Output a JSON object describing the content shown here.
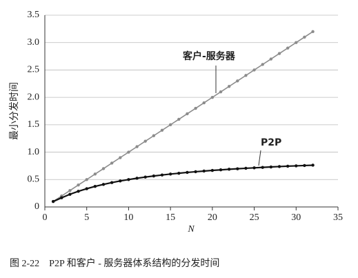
{
  "chart_data": {
    "type": "line",
    "ylabel": "最小分发时间",
    "xlabel": "N",
    "caption": "图 2-22　P2P 和客户 - 服务器体系结构的分发时间",
    "annotations": [
      "客户-服务器",
      "P2P"
    ],
    "x": [
      1,
      2,
      3,
      4,
      5,
      6,
      7,
      8,
      9,
      10,
      11,
      12,
      13,
      14,
      15,
      16,
      17,
      18,
      19,
      20,
      21,
      22,
      23,
      24,
      25,
      26,
      27,
      28,
      29,
      30,
      31,
      32
    ],
    "series": [
      {
        "name": "客户-服务器",
        "color": "#8c8c8c",
        "values": [
          0.1,
          0.2,
          0.3,
          0.4,
          0.5,
          0.6,
          0.7,
          0.8,
          0.9,
          1.0,
          1.1,
          1.2,
          1.3,
          1.4,
          1.5,
          1.6,
          1.7,
          1.8,
          1.9,
          2.0,
          2.1,
          2.2,
          2.3,
          2.4,
          2.5,
          2.6,
          2.7,
          2.8,
          2.9,
          3.0,
          3.1,
          3.2
        ]
      },
      {
        "name": "P2P",
        "color": "#111111",
        "values": [
          0.1,
          0.167,
          0.231,
          0.286,
          0.333,
          0.375,
          0.412,
          0.444,
          0.474,
          0.5,
          0.524,
          0.545,
          0.565,
          0.583,
          0.6,
          0.615,
          0.63,
          0.643,
          0.655,
          0.667,
          0.677,
          0.688,
          0.697,
          0.706,
          0.714,
          0.722,
          0.73,
          0.737,
          0.744,
          0.75,
          0.756,
          0.762
        ]
      }
    ],
    "xlim": [
      0,
      35
    ],
    "xticks": [
      0,
      5,
      10,
      15,
      20,
      25,
      30,
      35
    ],
    "ylim": [
      0,
      3.5
    ],
    "yticks": [
      0,
      0.5,
      {
        "value": 1,
        "label": "1.0"
      },
      1.5,
      {
        "value": 2,
        "label": "2.0"
      },
      2.5,
      {
        "value": 3,
        "label": "3.0"
      },
      3.5
    ],
    "grid": true
  }
}
